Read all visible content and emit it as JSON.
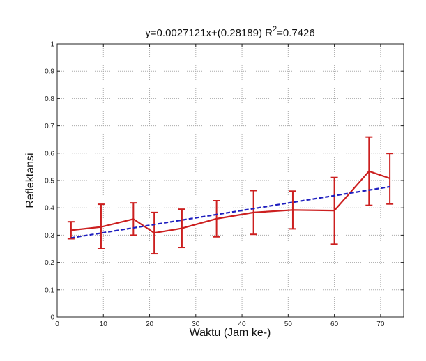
{
  "chart_data": {
    "type": "line",
    "title_main": "y=0.0027121x+(0.28189)  R",
    "title_sup": "2",
    "title_tail": "=0.7426",
    "xlabel": "Waktu (Jam ke-)",
    "ylabel": "Reflektansi",
    "xlim": [
      0,
      75
    ],
    "ylim": [
      0,
      1
    ],
    "xticks": [
      0,
      10,
      20,
      30,
      40,
      50,
      60,
      70
    ],
    "yticks": [
      0,
      0.1,
      0.2,
      0.3,
      0.4,
      0.5,
      0.6,
      0.7,
      0.8,
      0.9,
      1
    ],
    "grid": true,
    "series": [
      {
        "role": "data-with-error",
        "color": "#cc1f1f",
        "x": [
          3,
          9.5,
          16.5,
          21,
          27,
          34.5,
          42.5,
          51,
          60,
          67.5,
          72
        ],
        "y": [
          0.318,
          0.33,
          0.359,
          0.308,
          0.325,
          0.36,
          0.383,
          0.392,
          0.39,
          0.534,
          0.508
        ],
        "err_low": [
          0.287,
          0.25,
          0.3,
          0.232,
          0.255,
          0.294,
          0.303,
          0.323,
          0.267,
          0.409,
          0.414
        ],
        "err_high": [
          0.349,
          0.413,
          0.418,
          0.383,
          0.395,
          0.426,
          0.463,
          0.461,
          0.511,
          0.659,
          0.599
        ]
      },
      {
        "role": "fit",
        "color": "#1f1fbf",
        "style": "dashed",
        "slope": 0.0027121,
        "intercept": 0.28189,
        "x_range": [
          3,
          72
        ]
      }
    ]
  }
}
